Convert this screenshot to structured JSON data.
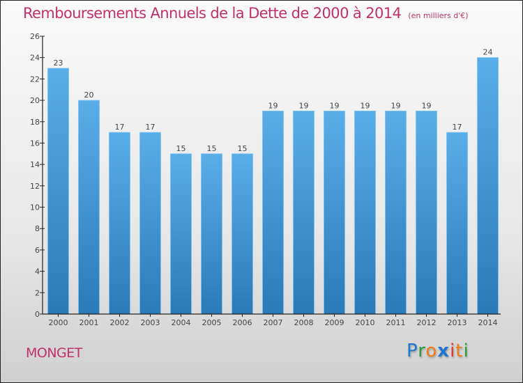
{
  "title": "Remboursements Annuels de la Dette de 2000 à 2014",
  "unit": "(en milliers d'€)",
  "city": "MONGET",
  "logo": {
    "letters": [
      {
        "ch": "P",
        "color": "#1f77d0"
      },
      {
        "ch": "r",
        "color": "#2e9a3a"
      },
      {
        "ch": "o",
        "color": "#f07b14"
      },
      {
        "ch": "x",
        "color": "#1f77d0"
      },
      {
        "ch": "i",
        "color": "#e03a2a"
      },
      {
        "ch": "t",
        "color": "#f07b14"
      },
      {
        "ch": "i",
        "color": "#2e9a3a"
      }
    ]
  },
  "colors": {
    "title": "#c0306a",
    "bar_top": "#5aaee8",
    "bar_bottom": "#2a7ab8"
  },
  "chart_data": {
    "type": "bar",
    "title": "Remboursements Annuels de la Dette de 2000 à 2014",
    "subtitle": "(en milliers d'€)",
    "xlabel": "",
    "ylabel": "",
    "categories": [
      "2000",
      "2001",
      "2002",
      "2003",
      "2004",
      "2005",
      "2006",
      "2007",
      "2008",
      "2009",
      "2010",
      "2011",
      "2012",
      "2013",
      "2014"
    ],
    "values": [
      23,
      20,
      17,
      17,
      15,
      15,
      15,
      19,
      19,
      19,
      19,
      19,
      19,
      17,
      24
    ],
    "ylim": [
      0,
      26
    ],
    "yticks": [
      0,
      2,
      4,
      6,
      8,
      10,
      12,
      14,
      16,
      18,
      20,
      22,
      24,
      26
    ],
    "grid": false,
    "data_labels": true
  }
}
